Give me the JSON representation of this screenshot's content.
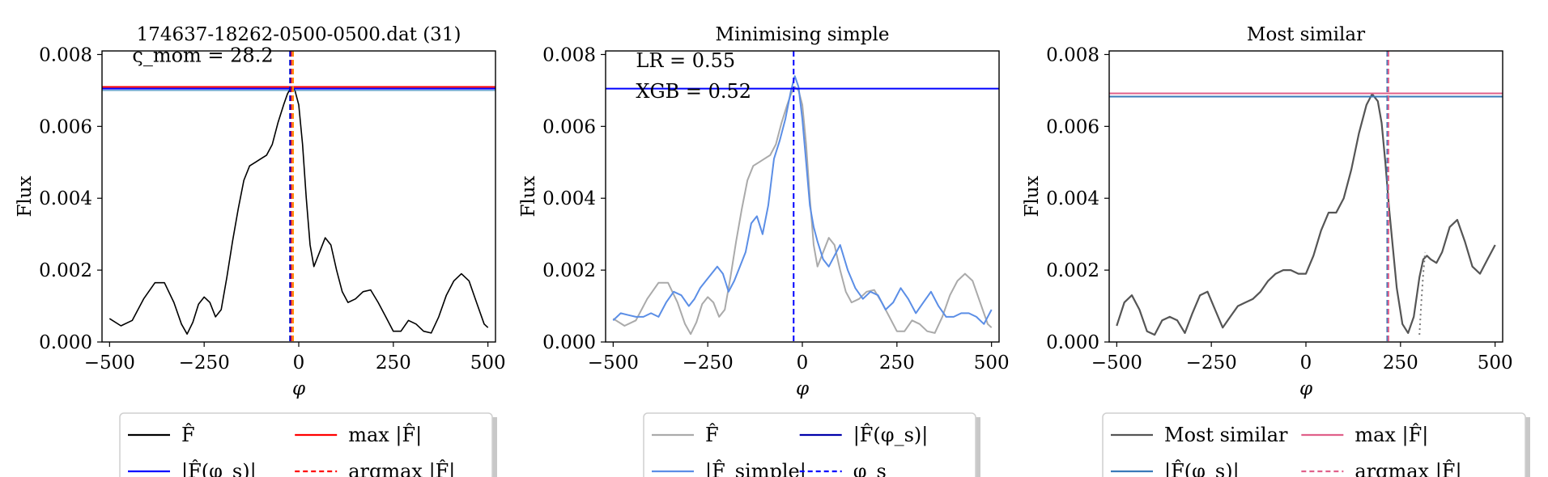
{
  "chart_data": [
    {
      "type": "line",
      "title": "174637-18262-0500-0500.dat (31)",
      "xlabel": "φ",
      "ylabel": "Flux",
      "xlim": [
        -520,
        520
      ],
      "ylim": [
        0,
        0.0081
      ],
      "xticks": [
        -500,
        -250,
        0,
        250,
        500
      ],
      "xtick_labels": [
        "−500",
        "−250",
        "0",
        "250",
        "500"
      ],
      "yticks": [
        0,
        0.002,
        0.004,
        0.006,
        0.008
      ],
      "ytick_labels": [
        "0.000",
        "0.002",
        "0.004",
        "0.006",
        "0.008"
      ],
      "annotations": [
        {
          "text": "ς_mom = 28.2",
          "x": -440,
          "y": 0.0078
        }
      ],
      "hlines": [
        {
          "y": 0.0071,
          "color": "#ff0000",
          "style": "solid"
        },
        {
          "y": 0.00705,
          "color": "#0000ff",
          "style": "solid"
        },
        {
          "y": 0.007,
          "color": "#1f77b4",
          "style": "solid",
          "width": 1
        }
      ],
      "vlines": [
        {
          "x": -20,
          "color": "#ff0000",
          "style": "dashed"
        },
        {
          "x": -23,
          "color": "#0000cc",
          "style": "dashed"
        },
        {
          "x": -15,
          "color": "#ff8c00",
          "style": "dashed"
        }
      ],
      "series": [
        {
          "color": "#000000",
          "width": 1.6,
          "style": "solid",
          "x": [
            -500,
            -470,
            -440,
            -410,
            -380,
            -355,
            -330,
            -310,
            -295,
            -280,
            -265,
            -250,
            -235,
            -220,
            -205,
            -190,
            -175,
            -160,
            -145,
            -130,
            -115,
            -100,
            -85,
            -70,
            -55,
            -40,
            -30,
            -20,
            -10,
            0,
            10,
            20,
            30,
            40,
            55,
            70,
            85,
            100,
            115,
            130,
            150,
            170,
            190,
            210,
            230,
            250,
            270,
            290,
            310,
            330,
            350,
            370,
            390,
            410,
            430,
            450,
            470,
            490,
            500
          ],
          "y": [
            0.00065,
            0.00045,
            0.0006,
            0.0012,
            0.00165,
            0.00165,
            0.0011,
            0.0005,
            0.00022,
            0.00055,
            0.00105,
            0.00125,
            0.0011,
            0.0007,
            0.0009,
            0.0018,
            0.0028,
            0.0037,
            0.0045,
            0.0049,
            0.005,
            0.0051,
            0.0052,
            0.0055,
            0.0061,
            0.0066,
            0.0069,
            0.0071,
            0.007,
            0.0066,
            0.0055,
            0.004,
            0.0027,
            0.0021,
            0.0025,
            0.0029,
            0.0027,
            0.002,
            0.0014,
            0.0011,
            0.0012,
            0.0014,
            0.00145,
            0.0011,
            0.0007,
            0.0003,
            0.0003,
            0.0006,
            0.0005,
            0.0003,
            0.00025,
            0.0007,
            0.0013,
            0.0017,
            0.0019,
            0.0017,
            0.0011,
            0.0005,
            0.0004
          ]
        }
      ],
      "legend": {
        "placement": "below",
        "entries": [
          {
            "label": "F̂",
            "color": "#000000",
            "style": "solid"
          },
          {
            "label": "max |F̂|",
            "color": "#ff0000",
            "style": "solid"
          },
          {
            "label": "|F̂(φ_s)|",
            "color": "#0000ff",
            "style": "solid"
          },
          {
            "label": "argmax |F̂|",
            "color": "#ff0000",
            "style": "dashed"
          }
        ]
      }
    },
    {
      "type": "line",
      "title": "Minimising simple",
      "xlabel": "φ",
      "ylabel": "Flux",
      "xlim": [
        -520,
        520
      ],
      "ylim": [
        0,
        0.0081
      ],
      "xticks": [
        -500,
        -250,
        0,
        250,
        500
      ],
      "xtick_labels": [
        "−500",
        "−250",
        "0",
        "250",
        "500"
      ],
      "yticks": [
        0,
        0.002,
        0.004,
        0.006,
        0.008
      ],
      "ytick_labels": [
        "0.000",
        "0.002",
        "0.004",
        "0.006",
        "0.008"
      ],
      "annotations": [
        {
          "text": "LR = 0.55",
          "x": -440,
          "y": 0.00765
        },
        {
          "text": "XGB = 0.52",
          "x": -440,
          "y": 0.0068
        }
      ],
      "hlines": [
        {
          "y": 0.00705,
          "color": "#0000ff",
          "style": "solid"
        }
      ],
      "vlines": [
        {
          "x": -23,
          "color": "#0000ff",
          "style": "dashed"
        }
      ],
      "series": [
        {
          "color": "#aaaaaa",
          "width": 2,
          "style": "solid",
          "x": [
            -500,
            -470,
            -440,
            -410,
            -380,
            -355,
            -330,
            -310,
            -295,
            -280,
            -265,
            -250,
            -235,
            -220,
            -205,
            -190,
            -175,
            -160,
            -145,
            -130,
            -115,
            -100,
            -85,
            -70,
            -55,
            -40,
            -30,
            -20,
            -10,
            0,
            10,
            20,
            30,
            40,
            55,
            70,
            85,
            100,
            115,
            130,
            150,
            170,
            190,
            210,
            230,
            250,
            270,
            290,
            310,
            330,
            350,
            370,
            390,
            410,
            430,
            450,
            470,
            490,
            500
          ],
          "y": [
            0.00065,
            0.00045,
            0.0006,
            0.0012,
            0.00165,
            0.00165,
            0.0011,
            0.0005,
            0.00022,
            0.00055,
            0.00105,
            0.00125,
            0.0011,
            0.0007,
            0.0009,
            0.0018,
            0.0028,
            0.0037,
            0.0045,
            0.0049,
            0.005,
            0.0051,
            0.0052,
            0.0055,
            0.0061,
            0.0066,
            0.0069,
            0.0071,
            0.007,
            0.0066,
            0.0055,
            0.004,
            0.0027,
            0.0021,
            0.0025,
            0.0029,
            0.0027,
            0.002,
            0.0014,
            0.0011,
            0.0012,
            0.0014,
            0.00145,
            0.0011,
            0.0007,
            0.0003,
            0.0003,
            0.0006,
            0.0005,
            0.0003,
            0.00025,
            0.0007,
            0.0013,
            0.0017,
            0.0019,
            0.0017,
            0.0011,
            0.0005,
            0.0004
          ]
        },
        {
          "color": "#5b8ee6",
          "width": 2,
          "style": "solid",
          "x": [
            -500,
            -480,
            -460,
            -440,
            -420,
            -400,
            -380,
            -360,
            -340,
            -320,
            -300,
            -285,
            -270,
            -255,
            -240,
            -225,
            -210,
            -195,
            -180,
            -165,
            -150,
            -135,
            -120,
            -105,
            -90,
            -75,
            -60,
            -45,
            -30,
            -20,
            -10,
            0,
            10,
            20,
            30,
            40,
            55,
            70,
            85,
            100,
            120,
            140,
            160,
            180,
            200,
            220,
            240,
            260,
            280,
            300,
            320,
            340,
            360,
            380,
            400,
            420,
            440,
            460,
            480,
            500
          ],
          "y": [
            0.0006,
            0.0008,
            0.00075,
            0.0007,
            0.0007,
            0.0008,
            0.0007,
            0.0011,
            0.0014,
            0.0013,
            0.001,
            0.0012,
            0.0015,
            0.0017,
            0.0019,
            0.0021,
            0.0019,
            0.0014,
            0.0017,
            0.0021,
            0.0025,
            0.0033,
            0.0035,
            0.003,
            0.0038,
            0.0051,
            0.0056,
            0.0062,
            0.007,
            0.0074,
            0.0071,
            0.0062,
            0.005,
            0.0038,
            0.0032,
            0.0028,
            0.0023,
            0.0021,
            0.0024,
            0.0027,
            0.002,
            0.0015,
            0.0012,
            0.0014,
            0.0013,
            0.0009,
            0.0011,
            0.0015,
            0.0012,
            0.0008,
            0.0011,
            0.0014,
            0.001,
            0.0007,
            0.0007,
            0.0008,
            0.0008,
            0.0007,
            0.0005,
            0.0009
          ]
        }
      ],
      "legend": {
        "placement": "below",
        "entries": [
          {
            "label": "F̂",
            "color": "#aaaaaa",
            "style": "solid"
          },
          {
            "label": "|F̂(φ_s)|",
            "color": "#0000aa",
            "style": "solid"
          },
          {
            "label": "|F̂_simple|",
            "color": "#5b8ee6",
            "style": "solid"
          },
          {
            "label": "φ_s",
            "color": "#0000ff",
            "style": "dashed"
          }
        ]
      }
    },
    {
      "type": "line",
      "title": "Most similar",
      "xlabel": "φ",
      "ylabel": "Flux",
      "xlim": [
        -520,
        520
      ],
      "ylim": [
        0,
        0.0081
      ],
      "xticks": [
        -500,
        -250,
        0,
        250,
        500
      ],
      "xtick_labels": [
        "−500",
        "−250",
        "0",
        "250",
        "500"
      ],
      "yticks": [
        0,
        0.002,
        0.004,
        0.006,
        0.008
      ],
      "ytick_labels": [
        "0.000",
        "0.002",
        "0.004",
        "0.006",
        "0.008"
      ],
      "annotations": [],
      "hlines": [
        {
          "y": 0.00692,
          "color": "#e0608a",
          "style": "solid"
        },
        {
          "y": 0.00683,
          "color": "#3a7ab8",
          "style": "solid"
        }
      ],
      "vlines": [
        {
          "x": 215,
          "color": "#3a7ab8",
          "style": "dashed"
        },
        {
          "x": 218,
          "color": "#e0608a",
          "style": "dashed"
        }
      ],
      "series": [
        {
          "color": "#555555",
          "width": 2.2,
          "style": "solid",
          "x": [
            -500,
            -480,
            -460,
            -440,
            -420,
            -400,
            -380,
            -360,
            -340,
            -320,
            -300,
            -280,
            -260,
            -240,
            -220,
            -200,
            -180,
            -160,
            -140,
            -120,
            -100,
            -80,
            -60,
            -40,
            -20,
            0,
            20,
            40,
            60,
            80,
            100,
            120,
            140,
            160,
            175,
            190,
            200,
            210,
            220,
            230,
            240,
            255,
            270,
            285,
            300,
            310,
            320,
            330,
            345,
            360,
            380,
            400,
            420,
            440,
            460,
            480,
            500
          ],
          "y": [
            0.00045,
            0.0011,
            0.0013,
            0.0009,
            0.0003,
            0.0002,
            0.0006,
            0.0007,
            0.0006,
            0.00025,
            0.0008,
            0.0013,
            0.0014,
            0.0009,
            0.0004,
            0.0007,
            0.001,
            0.0011,
            0.0012,
            0.0014,
            0.0017,
            0.0019,
            0.002,
            0.002,
            0.0019,
            0.0019,
            0.0024,
            0.0031,
            0.0036,
            0.0036,
            0.004,
            0.0048,
            0.0058,
            0.0066,
            0.0069,
            0.0067,
            0.0061,
            0.005,
            0.0037,
            0.0026,
            0.0015,
            0.0005,
            0.00025,
            0.0007,
            0.0018,
            0.0023,
            0.0024,
            0.0023,
            0.0022,
            0.0025,
            0.0032,
            0.0034,
            0.0028,
            0.0021,
            0.0019,
            0.0023,
            0.0027
          ]
        },
        {
          "color": "#777777",
          "width": 2,
          "style": "dotted",
          "x": [
            300,
            305,
            310,
            315
          ],
          "y": [
            0.0002,
            0.0011,
            0.0019,
            0.0025
          ]
        }
      ],
      "legend": {
        "placement": "below",
        "entries": [
          {
            "label": "Most similar",
            "color": "#555555",
            "style": "solid"
          },
          {
            "label": "max |F̂|",
            "color": "#e0608a",
            "style": "solid"
          },
          {
            "label": "|F̂(φ_s)|",
            "color": "#3a7ab8",
            "style": "solid"
          },
          {
            "label": "argmax |F̂|",
            "color": "#e0608a",
            "style": "dashed"
          }
        ]
      }
    }
  ]
}
